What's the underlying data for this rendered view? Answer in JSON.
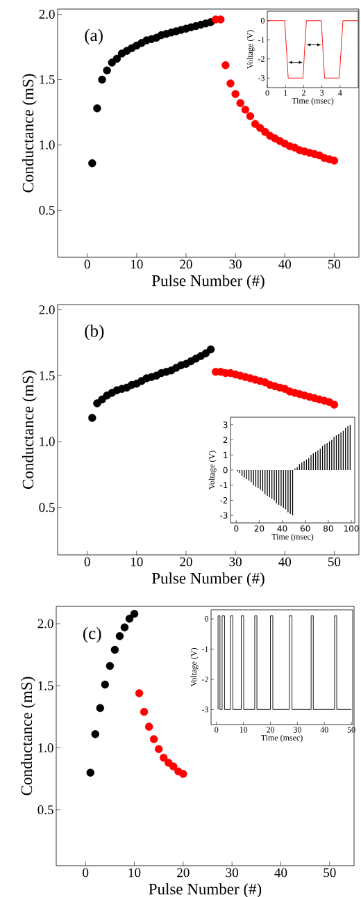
{
  "chart_data": [
    {
      "type": "scatter",
      "xlabel": "Pulse Number (#)",
      "ylabel": "Conductance (mS)",
      "annotations": [
        "(a)"
      ],
      "marker": "circle",
      "xlim": [
        -6,
        55
      ],
      "ylim": [
        0.14,
        2.04
      ],
      "xticks": [
        0,
        10,
        20,
        30,
        40,
        50
      ],
      "yticks": [
        {
          "value": 0.5,
          "label": "0.5"
        },
        {
          "value": 1,
          "label": "1.0"
        },
        {
          "value": 1.5,
          "label": "1.5"
        },
        {
          "value": 2,
          "label": "2.0"
        }
      ],
      "series": [
        {
          "color": "#000000",
          "x": [
            1,
            2,
            3,
            4,
            5,
            6,
            7,
            8,
            9,
            10,
            11,
            12,
            13,
            14,
            15,
            16,
            17,
            18,
            19,
            20,
            21,
            22,
            23,
            24,
            25
          ],
          "values": [
            0.86,
            1.28,
            1.5,
            1.57,
            1.63,
            1.66,
            1.7,
            1.72,
            1.74,
            1.76,
            1.78,
            1.8,
            1.81,
            1.82,
            1.84,
            1.85,
            1.86,
            1.87,
            1.88,
            1.89,
            1.9,
            1.91,
            1.92,
            1.93,
            1.94
          ]
        },
        {
          "color": "#ff0000",
          "x": [
            26,
            27,
            28,
            29,
            30,
            31,
            32,
            33,
            34,
            35,
            36,
            37,
            38,
            39,
            40,
            41,
            42,
            43,
            44,
            45,
            46,
            47,
            48,
            49,
            50
          ],
          "values": [
            1.96,
            1.96,
            1.61,
            1.47,
            1.39,
            1.32,
            1.27,
            1.22,
            1.16,
            1.13,
            1.1,
            1.07,
            1.05,
            1.03,
            1.01,
            0.99,
            0.98,
            0.96,
            0.95,
            0.94,
            0.93,
            0.92,
            0.9,
            0.89,
            0.88
          ]
        }
      ]
    },
    {
      "type": "line",
      "xlabel": "Time (msec)",
      "ylabel": "Voltage (V)",
      "marker": "none",
      "xlim": [
        0,
        5
      ],
      "ylim": [
        -3.5,
        0.5
      ],
      "xticks": [
        0,
        1,
        2,
        3,
        4
      ],
      "yticks": [
        -3,
        -2,
        -1,
        0
      ],
      "series": [
        {
          "color": "#ff0000",
          "x": [
            0,
            0.96,
            1.15,
            1.96,
            2.15,
            2.97,
            3.15,
            3.96,
            4.16,
            5
          ],
          "values": [
            0,
            0,
            -3,
            -3,
            0,
            0,
            -3,
            -3,
            0,
            0
          ]
        }
      ]
    },
    {
      "type": "scatter",
      "xlabel": "Pulse Number (#)",
      "ylabel": "Conductance (mS)",
      "annotations": [
        "(b)"
      ],
      "marker": "circle",
      "xlim": [
        -6,
        55
      ],
      "ylim": [
        0.14,
        2.04
      ],
      "xticks": [
        0,
        10,
        20,
        30,
        40,
        50
      ],
      "yticks": [
        {
          "value": 0.5,
          "label": "0.5"
        },
        {
          "value": 1,
          "label": "1.0"
        },
        {
          "value": 1.5,
          "label": "1.5"
        },
        {
          "value": 2,
          "label": "2.0"
        }
      ],
      "series": [
        {
          "color": "#000000",
          "x": [
            1,
            2,
            3,
            4,
            5,
            6,
            7,
            8,
            9,
            10,
            11,
            12,
            13,
            14,
            15,
            16,
            17,
            18,
            19,
            20,
            21,
            22,
            23,
            24,
            25
          ],
          "values": [
            1.18,
            1.29,
            1.32,
            1.35,
            1.37,
            1.39,
            1.4,
            1.41,
            1.43,
            1.44,
            1.46,
            1.48,
            1.49,
            1.5,
            1.52,
            1.53,
            1.54,
            1.56,
            1.58,
            1.59,
            1.61,
            1.63,
            1.65,
            1.67,
            1.7
          ]
        },
        {
          "color": "#ff0000",
          "x": [
            26,
            27,
            28,
            29,
            30,
            31,
            32,
            33,
            34,
            35,
            36,
            37,
            38,
            39,
            40,
            41,
            42,
            43,
            44,
            45,
            46,
            47,
            48,
            49,
            50
          ],
          "values": [
            1.53,
            1.53,
            1.52,
            1.52,
            1.51,
            1.5,
            1.49,
            1.48,
            1.47,
            1.46,
            1.45,
            1.43,
            1.42,
            1.41,
            1.4,
            1.38,
            1.37,
            1.36,
            1.35,
            1.34,
            1.33,
            1.32,
            1.31,
            1.3,
            1.28
          ]
        }
      ]
    },
    {
      "type": "bar",
      "xlabel": "Time (msec)",
      "ylabel": "Voltage (V)",
      "xlim": [
        -5,
        103
      ],
      "ylim": [
        -3.5,
        3.5
      ],
      "xticks": [
        0,
        20,
        40,
        60,
        80,
        100
      ],
      "yticks": [
        -3,
        -2,
        -1,
        0,
        1,
        2,
        3
      ],
      "series": [
        {
          "color": "#000000",
          "x": [
            1,
            3,
            5,
            7,
            9,
            11,
            13,
            15,
            17,
            19,
            21,
            23,
            25,
            27,
            29,
            31,
            33,
            35,
            37,
            39,
            41,
            43,
            45,
            47,
            49,
            51,
            53,
            55,
            57,
            59,
            61,
            63,
            65,
            67,
            69,
            71,
            73,
            75,
            77,
            79,
            81,
            83,
            85,
            87,
            89,
            91,
            93,
            95,
            97,
            99
          ],
          "values": [
            -0.1,
            -0.2,
            -0.4,
            -0.5,
            -0.6,
            -0.7,
            -0.8,
            -1.0,
            -1.1,
            -1.2,
            -1.3,
            -1.4,
            -1.6,
            -1.7,
            -1.8,
            -1.9,
            -2.0,
            -2.2,
            -2.3,
            -2.4,
            -2.5,
            -2.6,
            -2.8,
            -2.9,
            -3.0,
            0.1,
            0.2,
            0.4,
            0.5,
            0.6,
            0.7,
            0.8,
            1.0,
            1.1,
            1.2,
            1.3,
            1.4,
            1.6,
            1.7,
            1.8,
            1.9,
            2.0,
            2.2,
            2.3,
            2.4,
            2.5,
            2.6,
            2.8,
            2.9,
            3.0
          ]
        }
      ]
    },
    {
      "type": "scatter",
      "xlabel": "Pulse Number (#)",
      "ylabel": "Conductance (mS)",
      "annotations": [
        "(c)"
      ],
      "marker": "circle",
      "xlim": [
        -6,
        55
      ],
      "ylim": [
        0.05,
        2.14
      ],
      "xticks": [
        0,
        10,
        20,
        30,
        40,
        50
      ],
      "yticks": [
        {
          "value": 0.5,
          "label": "0.5"
        },
        {
          "value": 1,
          "label": "1.0"
        },
        {
          "value": 1.5,
          "label": "1.5"
        },
        {
          "value": 2,
          "label": "2.0"
        }
      ],
      "series": [
        {
          "color": "#000000",
          "x": [
            1,
            2,
            3,
            4,
            5,
            6,
            7,
            8,
            9,
            10
          ],
          "values": [
            0.8,
            1.11,
            1.32,
            1.51,
            1.66,
            1.79,
            1.9,
            1.97,
            2.04,
            2.08
          ]
        },
        {
          "color": "#ff0000",
          "x": [
            11,
            12,
            13,
            14,
            15,
            16,
            17,
            18,
            19,
            20
          ],
          "values": [
            1.44,
            1.29,
            1.17,
            1.07,
            0.99,
            0.92,
            0.88,
            0.85,
            0.81,
            0.79
          ]
        }
      ]
    },
    {
      "type": "line",
      "xlabel": "Time (msec)",
      "ylabel": "Voltage (V)",
      "marker": "none",
      "xlim": [
        -2,
        50.5
      ],
      "ylim": [
        -3.5,
        0.3
      ],
      "xticks": [
        0,
        10,
        20,
        30,
        40,
        50
      ],
      "yticks": [
        -3,
        -2,
        -1,
        0
      ],
      "series": [
        {
          "color": "#000000",
          "x": [
            0.6,
            0.6,
            1.3,
            1.3,
            2.1,
            2.1,
            3.0,
            3.0,
            5.2,
            5.2,
            6.1,
            6.1,
            9.2,
            9.2,
            10.1,
            10.1,
            14.2,
            14.2,
            15.0,
            15.0,
            20.0,
            20.0,
            20.9,
            20.9,
            27.0,
            27.0,
            28.0,
            28.0,
            35.1,
            35.1,
            35.9,
            35.9,
            43.8,
            43.8,
            44.6,
            44.6,
            50
          ],
          "values": [
            -3,
            0.1,
            0.1,
            -3,
            -3,
            0.1,
            0.1,
            -3,
            -3,
            0.1,
            0.1,
            -3,
            -3,
            0.1,
            0.1,
            -3,
            -3,
            0.1,
            0.1,
            -3,
            -3,
            0.1,
            0.1,
            -3,
            -3,
            0.1,
            0.1,
            -3,
            -3,
            0.1,
            0.1,
            -3,
            -3,
            0.1,
            0.1,
            -3,
            -3
          ]
        }
      ]
    }
  ]
}
